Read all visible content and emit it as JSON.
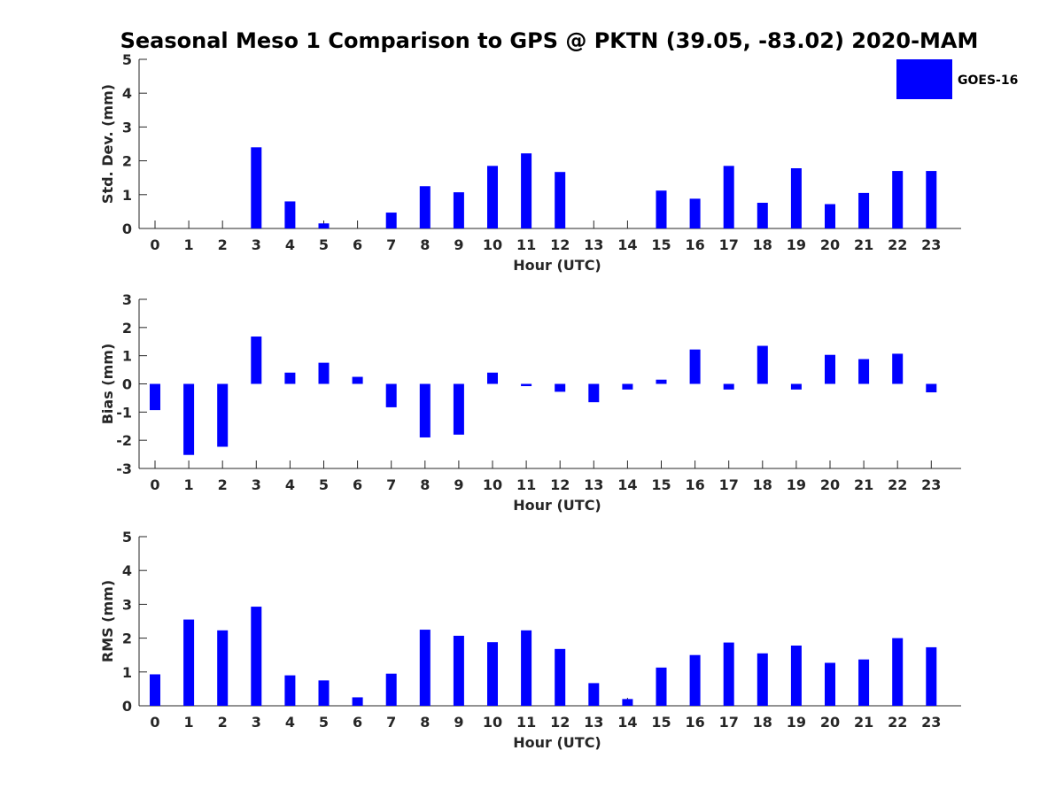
{
  "title": "Seasonal Meso 1 Comparison to GPS @ PKTN (39.05, -83.02) 2020-MAM",
  "legend": {
    "label": "GOES-16",
    "color": "#0000ff"
  },
  "chart_data": [
    {
      "type": "bar",
      "xlabel": "Hour (UTC)",
      "ylabel": "Std. Dev. (mm)",
      "ylim": [
        0,
        5
      ],
      "yticks": [
        0,
        1,
        2,
        3,
        4,
        5
      ],
      "categories": [
        "0",
        "1",
        "2",
        "3",
        "4",
        "5",
        "6",
        "7",
        "8",
        "9",
        "10",
        "11",
        "12",
        "13",
        "14",
        "15",
        "16",
        "17",
        "18",
        "19",
        "20",
        "21",
        "22",
        "23"
      ],
      "series": [
        {
          "name": "GOES-16",
          "color": "#0000ff",
          "values": [
            0,
            0,
            0,
            2.4,
            0.8,
            0.15,
            0,
            0.47,
            1.25,
            1.07,
            1.85,
            2.22,
            1.67,
            0,
            0,
            1.12,
            0.88,
            1.85,
            0.76,
            1.78,
            0.72,
            1.05,
            1.7,
            1.7
          ]
        }
      ]
    },
    {
      "type": "bar",
      "xlabel": "Hour (UTC)",
      "ylabel": "Bias (mm)",
      "ylim": [
        -3,
        3
      ],
      "yticks": [
        -3,
        -2,
        -1,
        0,
        1,
        2,
        3
      ],
      "categories": [
        "0",
        "1",
        "2",
        "3",
        "4",
        "5",
        "6",
        "7",
        "8",
        "9",
        "10",
        "11",
        "12",
        "13",
        "14",
        "15",
        "16",
        "17",
        "18",
        "19",
        "20",
        "21",
        "22",
        "23"
      ],
      "series": [
        {
          "name": "GOES-16",
          "color": "#0000ff",
          "values": [
            -0.93,
            -2.52,
            -2.23,
            1.68,
            0.4,
            0.75,
            0.25,
            -0.83,
            -1.9,
            -1.8,
            0.4,
            -0.08,
            -0.28,
            -0.65,
            -0.2,
            0.15,
            1.22,
            -0.2,
            1.35,
            -0.2,
            1.03,
            0.88,
            1.07,
            -0.3
          ]
        }
      ]
    },
    {
      "type": "bar",
      "xlabel": "Hour (UTC)",
      "ylabel": "RMS (mm)",
      "ylim": [
        0,
        5
      ],
      "yticks": [
        0,
        1,
        2,
        3,
        4,
        5
      ],
      "categories": [
        "0",
        "1",
        "2",
        "3",
        "4",
        "5",
        "6",
        "7",
        "8",
        "9",
        "10",
        "11",
        "12",
        "13",
        "14",
        "15",
        "16",
        "17",
        "18",
        "19",
        "20",
        "21",
        "22",
        "23"
      ],
      "series": [
        {
          "name": "GOES-16",
          "color": "#0000ff",
          "values": [
            0.93,
            2.55,
            2.23,
            2.93,
            0.9,
            0.75,
            0.25,
            0.95,
            2.25,
            2.07,
            1.88,
            2.23,
            1.68,
            0.67,
            0.2,
            1.13,
            1.5,
            1.87,
            1.55,
            1.78,
            1.27,
            1.37,
            2.0,
            1.73
          ]
        }
      ]
    }
  ]
}
